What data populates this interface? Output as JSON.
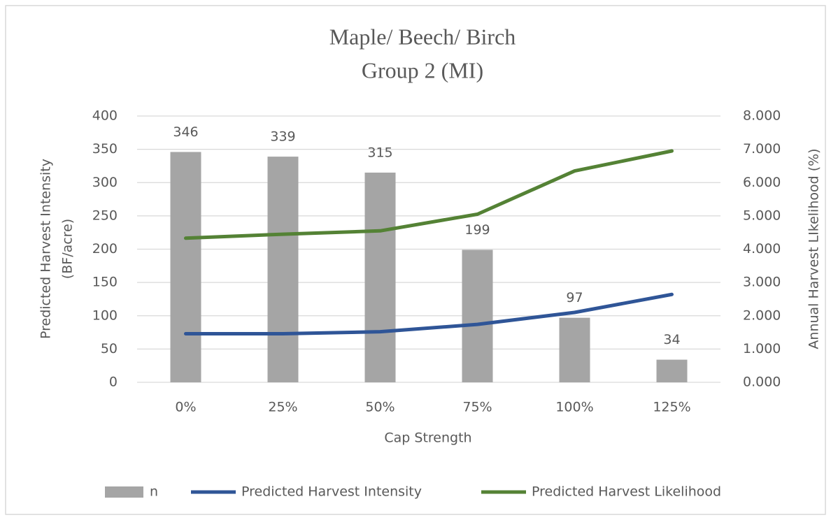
{
  "chart_data": {
    "type": "bar",
    "title": "Maple/ Beech/ Birch",
    "subtitle": "Group 2 (MI)",
    "xlabel": "Cap Strength",
    "ylabel": [
      "Predicted Harvest Intensity",
      "(BF/acre)"
    ],
    "y2label": "Annual Harvest LIkelihood (%)",
    "categories": [
      "0%",
      "25%",
      "50%",
      "75%",
      "100%",
      "125%"
    ],
    "series": [
      {
        "name": "n",
        "type": "bar",
        "color": "#a5a5a5",
        "values": [
          346,
          339,
          315,
          199,
          97,
          34
        ]
      },
      {
        "name": "Predicted Harvest Intensity",
        "type": "line",
        "color": "#2f5597",
        "values": [
          73,
          73,
          76,
          87,
          105,
          132
        ]
      },
      {
        "name": "Predicted Harvest Likelihood",
        "type": "line",
        "axis": "y2",
        "color": "#548235",
        "values": [
          4.33,
          4.45,
          4.55,
          5.05,
          6.35,
          6.95
        ]
      }
    ],
    "ylim": [
      0,
      400
    ],
    "yticks": [
      0,
      50,
      100,
      150,
      200,
      250,
      300,
      350,
      400
    ],
    "y2lim": [
      0,
      8
    ],
    "y2ticks": [
      {
        "value": 0,
        "label": "0.000"
      },
      {
        "value": 1,
        "label": "1.000"
      },
      {
        "value": 2,
        "label": "2.000"
      },
      {
        "value": 3,
        "label": "3.000"
      },
      {
        "value": 4,
        "label": "4.000"
      },
      {
        "value": 5,
        "label": "5.000"
      },
      {
        "value": 6,
        "label": "6.000"
      },
      {
        "value": 7,
        "label": "7.000"
      },
      {
        "value": 8,
        "label": "8.000"
      }
    ],
    "grid": true,
    "legend": "bottom"
  }
}
